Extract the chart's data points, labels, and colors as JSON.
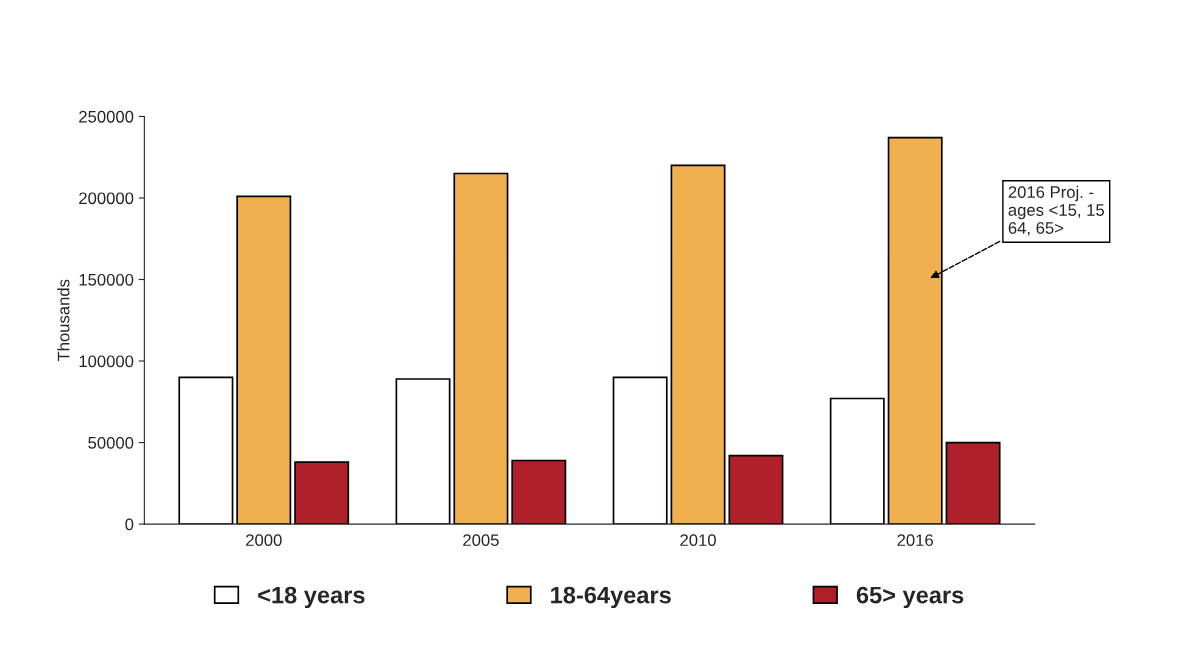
{
  "chart_data": {
    "type": "bar",
    "ylabel": "Thousands",
    "categories": [
      "2000",
      "2005",
      "2010",
      "2016"
    ],
    "series": [
      {
        "name": "<18 years",
        "color": "#ffffff",
        "values": [
          90000,
          89000,
          90000,
          77000
        ]
      },
      {
        "name": "18-64years",
        "color": "#f0b050",
        "values": [
          201000,
          215000,
          220000,
          237000
        ]
      },
      {
        "name": "65> years",
        "color": "#b0202a",
        "values": [
          38000,
          39000,
          42000,
          50000
        ]
      }
    ],
    "ylim": [
      0,
      250000
    ],
    "yticks": [
      0,
      50000,
      100000,
      150000,
      200000,
      250000
    ],
    "grid": false,
    "legend": "bottom",
    "annotations": [
      "2016 Proj. -\nages <15, 15\n64, 65>"
    ]
  }
}
